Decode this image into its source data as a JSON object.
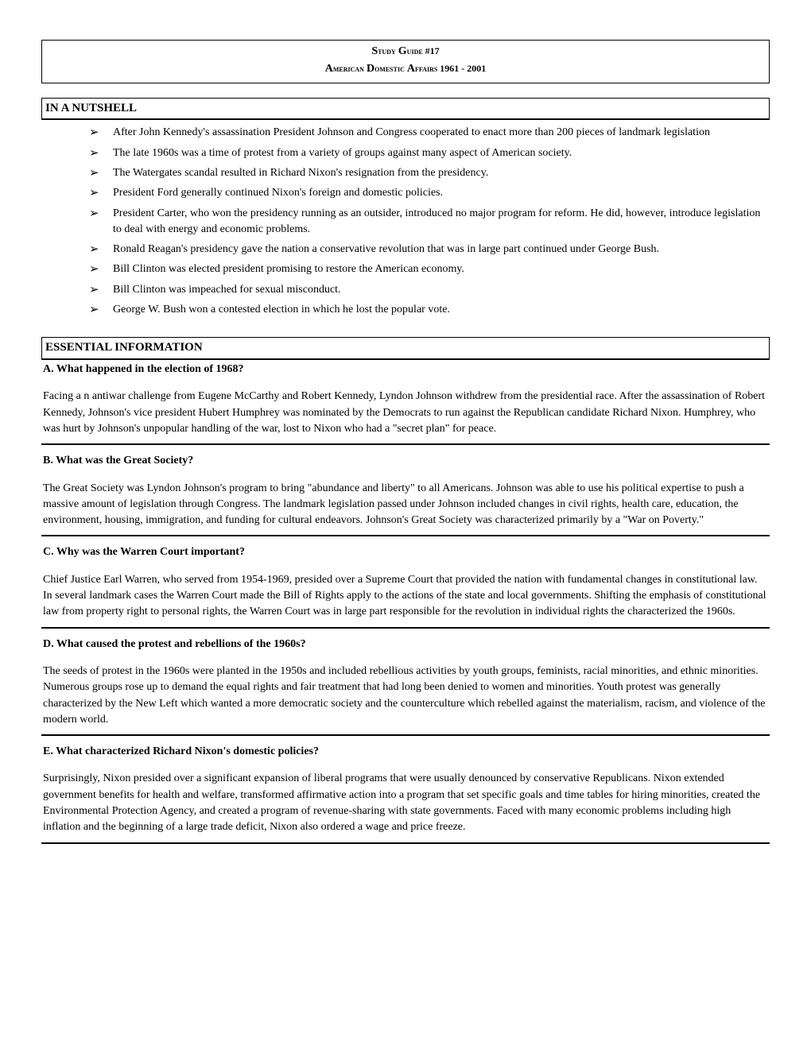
{
  "header": {
    "line1_a": "S",
    "line1_b": "tudy ",
    "line1_c": "G",
    "line1_d": "uide #17",
    "line2_a": "A",
    "line2_b": "merican ",
    "line2_c": "D",
    "line2_d": "omestic ",
    "line2_e": "A",
    "line2_f": "ffairs 1961 - 2001"
  },
  "nutshell": {
    "title": "IN A NUTSHELL",
    "items": [
      "After John Kennedy's assassination President Johnson and Congress cooperated to enact more than 200 pieces of landmark legislation",
      "The late 1960s was a time of protest from a variety of groups against many aspect of American society.",
      "The Watergates scandal resulted in Richard Nixon's resignation from the presidency.",
      "President Ford generally continued Nixon's foreign and domestic policies.",
      "President Carter, who won the presidency running as an outsider, introduced no major program for reform. He did, however, introduce legislation to deal with energy and economic problems.",
      "Ronald Reagan's presidency gave the nation a conservative revolution that was in large part continued under George Bush.",
      "Bill Clinton was elected president promising to restore the American economy.",
      "Bill Clinton was impeached for sexual misconduct.",
      "George W. Bush won a contested election in which he lost the popular vote."
    ]
  },
  "essential": {
    "title": "ESSENTIAL INFORMATION",
    "qa": [
      {
        "q": "A. What happened in the election of 1968?",
        "a": "Facing a n antiwar challenge from Eugene McCarthy and Robert Kennedy, Lyndon Johnson withdrew from the presidential race. After the assassination of Robert Kennedy, Johnson's vice president Hubert Humphrey was nominated by the Democrats to run against the Republican candidate Richard Nixon. Humphrey, who was hurt by Johnson's unpopular handling of the war, lost to Nixon who had a \"secret plan\" for peace."
      },
      {
        "q": "B. What was the Great Society?",
        "a": "The Great Society was Lyndon Johnson's program to bring \"abundance and liberty\" to all Americans. Johnson was able to use his political expertise to push a massive amount of legislation through Congress. The landmark legislation passed under Johnson included changes in civil rights, health care, education, the environment, housing, immigration, and funding for cultural endeavors. Johnson's Great Society was characterized primarily by a \"War on Poverty.\""
      },
      {
        "q": "C. Why was the Warren Court important?",
        "a": "Chief Justice Earl Warren, who served from 1954-1969, presided over a Supreme Court that provided the nation with fundamental changes in constitutional law. In several landmark cases the Warren Court made the Bill of Rights apply to the actions of the state and local governments. Shifting the emphasis of constitutional law from property right to personal rights, the Warren Court was in large part responsible for the revolution in individual rights the characterized the 1960s."
      },
      {
        "q": "D. What caused the protest and rebellions of the 1960s?",
        "a": "The seeds of protest in the 1960s were planted in the 1950s and included rebellious activities by youth groups, feminists, racial minorities, and ethnic minorities. Numerous groups rose up to demand the equal rights and fair treatment that had long been denied to women and minorities. Youth protest was generally characterized by the New Left which wanted a more democratic society and the counterculture which rebelled against the materialism, racism, and violence of the modern world."
      },
      {
        "q": "E. What characterized Richard Nixon's domestic policies?",
        "a": "Surprisingly, Nixon presided over a significant expansion of liberal programs that were usually denounced by conservative Republicans. Nixon extended government benefits for health and welfare, transformed affirmative action into a program that set specific goals and time tables for hiring minorities, created the Environmental Protection Agency, and created a program of revenue-sharing with state governments. Faced with many economic problems including high inflation and the beginning of a large trade deficit, Nixon also ordered a wage and price freeze."
      }
    ]
  }
}
